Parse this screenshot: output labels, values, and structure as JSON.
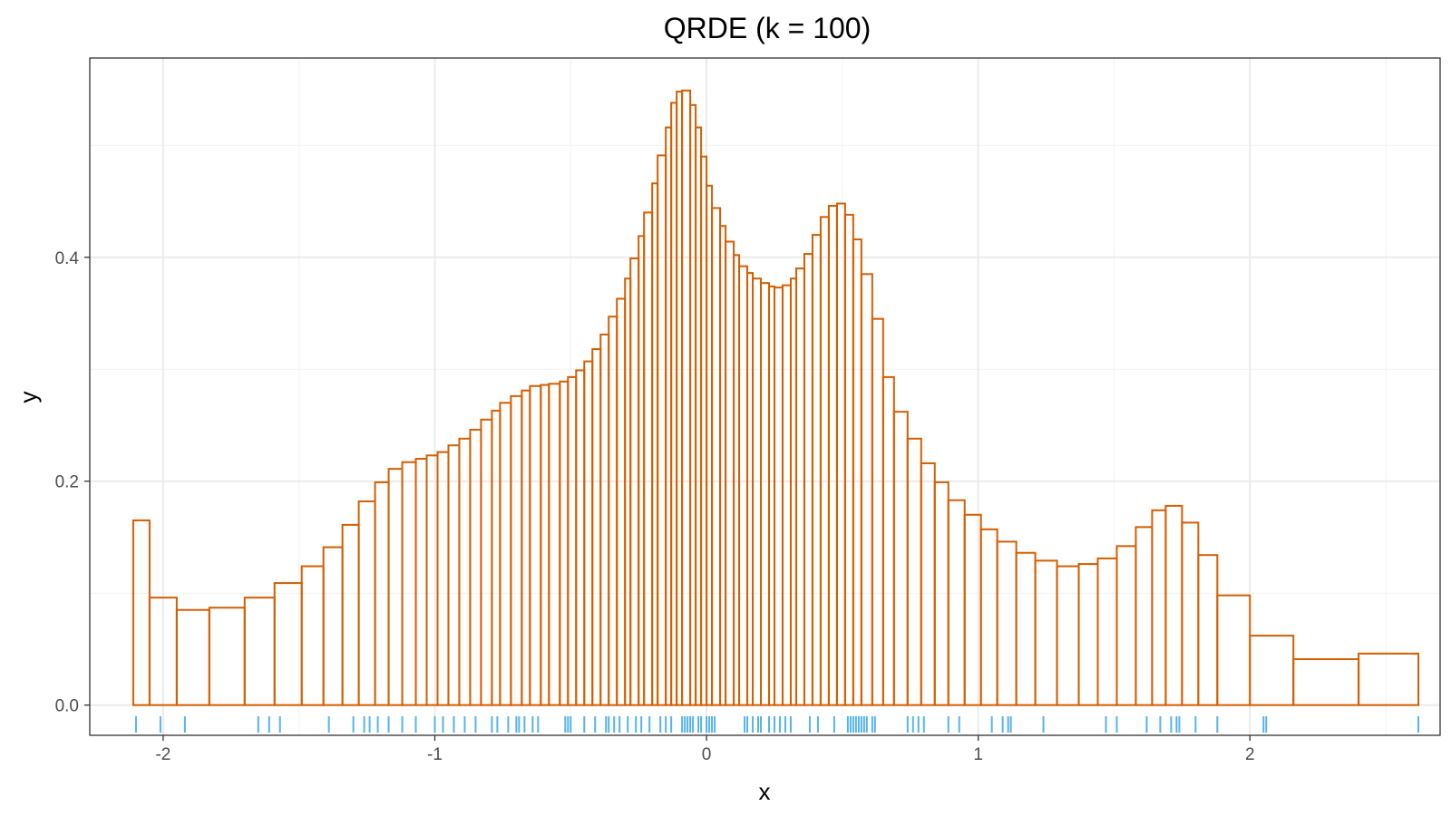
{
  "chart_data": {
    "type": "histogram",
    "title": "QRDE (k = 100)",
    "xlabel": "x",
    "ylabel": "y",
    "xlim": [
      -2.27,
      2.7
    ],
    "ylim": [
      -0.027,
      0.578
    ],
    "x_ticks": [
      -2,
      -1,
      0,
      1,
      2
    ],
    "x_tick_labels": [
      "-2",
      "-1",
      "0",
      "1",
      "2"
    ],
    "y_ticks": [
      0.0,
      0.2,
      0.4
    ],
    "y_tick_labels": [
      "0.0",
      "0.2",
      "0.4"
    ],
    "y_minor_ticks": [
      0.1,
      0.3,
      0.5
    ],
    "x_minor_ticks": [
      -1.5,
      -0.5,
      0.5,
      1.5,
      2.5
    ],
    "grid": true,
    "theme": "bw",
    "bar_color": "#D55E00",
    "rug_color": "#56B4E9",
    "bins": [
      [
        -2.11,
        -2.05,
        0.165
      ],
      [
        -2.05,
        -1.95,
        0.096
      ],
      [
        -1.95,
        -1.83,
        0.085
      ],
      [
        -1.83,
        -1.7,
        0.087
      ],
      [
        -1.7,
        -1.59,
        0.096
      ],
      [
        -1.59,
        -1.49,
        0.109
      ],
      [
        -1.49,
        -1.41,
        0.124
      ],
      [
        -1.41,
        -1.34,
        0.141
      ],
      [
        -1.34,
        -1.28,
        0.161
      ],
      [
        -1.28,
        -1.22,
        0.182
      ],
      [
        -1.22,
        -1.17,
        0.199
      ],
      [
        -1.17,
        -1.12,
        0.211
      ],
      [
        -1.12,
        -1.07,
        0.217
      ],
      [
        -1.07,
        -1.03,
        0.22
      ],
      [
        -1.03,
        -0.99,
        0.223
      ],
      [
        -0.99,
        -0.95,
        0.226
      ],
      [
        -0.95,
        -0.91,
        0.232
      ],
      [
        -0.91,
        -0.87,
        0.238
      ],
      [
        -0.87,
        -0.83,
        0.246
      ],
      [
        -0.83,
        -0.79,
        0.255
      ],
      [
        -0.79,
        -0.76,
        0.263
      ],
      [
        -0.76,
        -0.72,
        0.27
      ],
      [
        -0.72,
        -0.68,
        0.276
      ],
      [
        -0.68,
        -0.65,
        0.281
      ],
      [
        -0.65,
        -0.61,
        0.285
      ],
      [
        -0.61,
        -0.58,
        0.286
      ],
      [
        -0.58,
        -0.54,
        0.287
      ],
      [
        -0.54,
        -0.51,
        0.289
      ],
      [
        -0.51,
        -0.48,
        0.293
      ],
      [
        -0.48,
        -0.45,
        0.299
      ],
      [
        -0.45,
        -0.42,
        0.307
      ],
      [
        -0.42,
        -0.39,
        0.318
      ],
      [
        -0.39,
        -0.36,
        0.331
      ],
      [
        -0.36,
        -0.33,
        0.347
      ],
      [
        -0.33,
        -0.3,
        0.363
      ],
      [
        -0.3,
        -0.28,
        0.381
      ],
      [
        -0.28,
        -0.25,
        0.399
      ],
      [
        -0.25,
        -0.23,
        0.419
      ],
      [
        -0.23,
        -0.2,
        0.44
      ],
      [
        -0.2,
        -0.18,
        0.466
      ],
      [
        -0.18,
        -0.15,
        0.491
      ],
      [
        -0.15,
        -0.13,
        0.516
      ],
      [
        -0.13,
        -0.11,
        0.538
      ],
      [
        -0.11,
        -0.09,
        0.548
      ],
      [
        -0.09,
        -0.06,
        0.549
      ],
      [
        -0.06,
        -0.04,
        0.536
      ],
      [
        -0.04,
        -0.02,
        0.516
      ],
      [
        -0.02,
        0.0,
        0.49
      ],
      [
        0.0,
        0.02,
        0.464
      ],
      [
        0.02,
        0.05,
        0.444
      ],
      [
        0.05,
        0.07,
        0.428
      ],
      [
        0.07,
        0.1,
        0.414
      ],
      [
        0.1,
        0.12,
        0.402
      ],
      [
        0.12,
        0.15,
        0.392
      ],
      [
        0.15,
        0.17,
        0.386
      ],
      [
        0.17,
        0.2,
        0.381
      ],
      [
        0.2,
        0.23,
        0.377
      ],
      [
        0.23,
        0.25,
        0.374
      ],
      [
        0.25,
        0.28,
        0.373
      ],
      [
        0.28,
        0.31,
        0.375
      ],
      [
        0.31,
        0.33,
        0.381
      ],
      [
        0.33,
        0.36,
        0.39
      ],
      [
        0.36,
        0.39,
        0.403
      ],
      [
        0.39,
        0.42,
        0.42
      ],
      [
        0.42,
        0.45,
        0.436
      ],
      [
        0.45,
        0.48,
        0.446
      ],
      [
        0.48,
        0.51,
        0.448
      ],
      [
        0.51,
        0.54,
        0.438
      ],
      [
        0.54,
        0.57,
        0.416
      ],
      [
        0.57,
        0.61,
        0.385
      ],
      [
        0.61,
        0.65,
        0.345
      ],
      [
        0.65,
        0.69,
        0.293
      ],
      [
        0.69,
        0.74,
        0.262
      ],
      [
        0.74,
        0.79,
        0.238
      ],
      [
        0.79,
        0.84,
        0.216
      ],
      [
        0.84,
        0.89,
        0.199
      ],
      [
        0.89,
        0.95,
        0.183
      ],
      [
        0.95,
        1.01,
        0.17
      ],
      [
        1.01,
        1.07,
        0.157
      ],
      [
        1.07,
        1.14,
        0.146
      ],
      [
        1.14,
        1.21,
        0.136
      ],
      [
        1.21,
        1.29,
        0.129
      ],
      [
        1.29,
        1.37,
        0.124
      ],
      [
        1.37,
        1.44,
        0.126
      ],
      [
        1.44,
        1.51,
        0.131
      ],
      [
        1.51,
        1.58,
        0.142
      ],
      [
        1.58,
        1.64,
        0.159
      ],
      [
        1.64,
        1.69,
        0.174
      ],
      [
        1.69,
        1.75,
        0.178
      ],
      [
        1.75,
        1.81,
        0.163
      ],
      [
        1.81,
        1.88,
        0.134
      ],
      [
        1.88,
        2.0,
        0.098
      ],
      [
        2.0,
        2.16,
        0.062
      ],
      [
        2.16,
        2.4,
        0.041
      ],
      [
        2.4,
        2.62,
        0.046
      ]
    ],
    "rug": [
      -2.1,
      -2.01,
      -1.92,
      -1.65,
      -1.61,
      -1.57,
      -1.39,
      -1.3,
      -1.26,
      -1.24,
      -1.21,
      -1.17,
      -1.12,
      -1.07,
      -1.0,
      -0.97,
      -0.93,
      -0.89,
      -0.85,
      -0.79,
      -0.77,
      -0.73,
      -0.7,
      -0.69,
      -0.67,
      -0.64,
      -0.62,
      -0.52,
      -0.51,
      -0.5,
      -0.45,
      -0.41,
      -0.37,
      -0.36,
      -0.34,
      -0.32,
      -0.29,
      -0.26,
      -0.24,
      -0.21,
      -0.17,
      -0.15,
      -0.13,
      -0.09,
      -0.08,
      -0.07,
      -0.06,
      -0.05,
      -0.03,
      -0.02,
      0.0,
      0.01,
      0.02,
      0.03,
      0.14,
      0.15,
      0.17,
      0.19,
      0.2,
      0.23,
      0.25,
      0.27,
      0.29,
      0.31,
      0.38,
      0.41,
      0.47,
      0.52,
      0.53,
      0.54,
      0.55,
      0.56,
      0.57,
      0.58,
      0.59,
      0.61,
      0.62,
      0.74,
      0.76,
      0.78,
      0.8,
      0.89,
      0.93,
      1.05,
      1.09,
      1.11,
      1.12,
      1.24,
      1.47,
      1.51,
      1.62,
      1.67,
      1.71,
      1.73,
      1.74,
      1.8,
      1.88,
      2.05,
      2.06,
      2.62
    ]
  }
}
